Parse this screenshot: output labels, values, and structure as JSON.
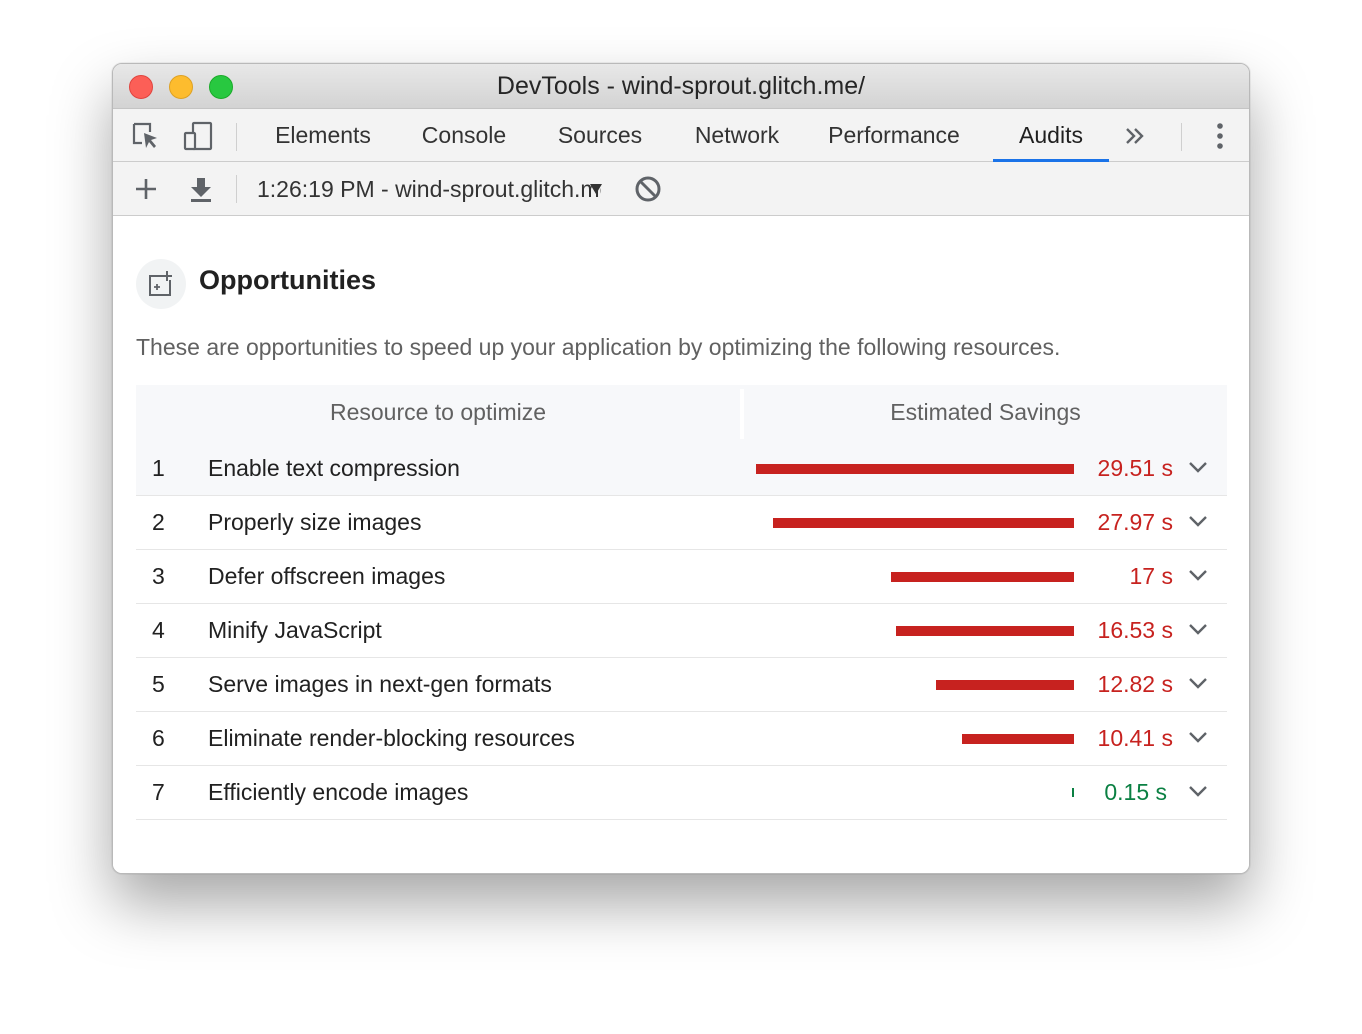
{
  "window": {
    "title": "DevTools - wind-sprout.glitch.me/"
  },
  "tabs": [
    {
      "label": "Elements"
    },
    {
      "label": "Console"
    },
    {
      "label": "Sources"
    },
    {
      "label": "Network"
    },
    {
      "label": "Performance"
    },
    {
      "label": "Audits",
      "active": true
    }
  ],
  "toolbar": {
    "run_label": "1:26:19 PM - wind-sprout.glitch.me/"
  },
  "section": {
    "title": "Opportunities",
    "description": "These are opportunities to speed up your application by optimizing the following resources."
  },
  "table": {
    "headers": [
      "Resource to optimize",
      "Estimated Savings"
    ],
    "rows": [
      {
        "index": "1",
        "name": "Enable text compression",
        "savings": "29.51 s",
        "seconds": 29.51,
        "status": "fail"
      },
      {
        "index": "2",
        "name": "Properly size images",
        "savings": "27.97 s",
        "seconds": 27.97,
        "status": "fail"
      },
      {
        "index": "3",
        "name": "Defer offscreen images",
        "savings": "17 s",
        "seconds": 17,
        "status": "fail"
      },
      {
        "index": "4",
        "name": "Minify JavaScript",
        "savings": "16.53 s",
        "seconds": 16.53,
        "status": "fail"
      },
      {
        "index": "5",
        "name": "Serve images in next-gen formats",
        "savings": "12.82 s",
        "seconds": 12.82,
        "status": "fail"
      },
      {
        "index": "6",
        "name": "Eliminate render-blocking resources",
        "savings": "10.41 s",
        "seconds": 10.41,
        "status": "fail"
      },
      {
        "index": "7",
        "name": "Efficiently encode images",
        "savings": "0.15 s",
        "seconds": 0.15,
        "status": "pass"
      }
    ]
  },
  "colors": {
    "fail": "#c7221f",
    "pass": "#0b8043",
    "accent": "#1a73e8"
  },
  "icons": [
    "inspect-element-icon",
    "device-toolbar-icon",
    "more-tabs-icon",
    "kebab-menu-icon",
    "add-icon",
    "download-icon",
    "clear-icon",
    "opportunities-icon",
    "chevron-down-icon"
  ]
}
